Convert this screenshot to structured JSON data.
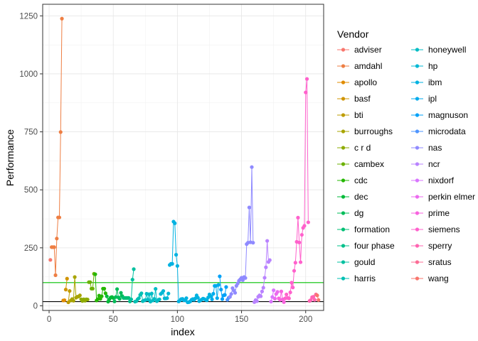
{
  "chart_data": {
    "type": "line",
    "xlabel": "index",
    "ylabel": "Performance",
    "xlim": [
      -5,
      214
    ],
    "ylim": [
      -20,
      1300
    ],
    "x_ticks": [
      0,
      50,
      100,
      150,
      200
    ],
    "y_ticks": [
      0,
      250,
      500,
      750,
      1000,
      1250
    ],
    "grid": true,
    "legend_title": "Vendor",
    "legend_position": "right",
    "hlines": [
      {
        "y": 18,
        "color": "#000000"
      },
      {
        "y": 100,
        "color": "#00c000"
      }
    ],
    "series": [
      {
        "name": "adviser",
        "color": "#F8766D",
        "x": [
          1
        ],
        "values": [
          198
        ]
      },
      {
        "name": "amdahl",
        "color": "#EE7E43",
        "x": [
          2,
          3,
          4,
          5,
          6,
          7,
          8,
          9,
          10
        ],
        "values": [
          253,
          253,
          253,
          132,
          290,
          381,
          381,
          749,
          1238
        ]
      },
      {
        "name": "apollo",
        "color": "#E08B00",
        "x": [
          11,
          12
        ],
        "values": [
          23,
          24
        ]
      },
      {
        "name": "basf",
        "color": "#D09400",
        "x": [
          13,
          14
        ],
        "values": [
          70,
          117
        ]
      },
      {
        "name": "bti",
        "color": "#BE9C00",
        "x": [
          15,
          16
        ],
        "values": [
          15,
          64
        ]
      },
      {
        "name": "burroughs",
        "color": "#A8A400",
        "x": [
          17,
          18,
          19,
          20,
          21,
          22,
          23,
          24
        ],
        "values": [
          23,
          29,
          22,
          124,
          35,
          39,
          40,
          45
        ]
      },
      {
        "name": "c r d",
        "color": "#8EAB00",
        "x": [
          25,
          26,
          27,
          28,
          29,
          30
        ],
        "values": [
          28,
          21,
          28,
          22,
          28,
          27
        ]
      },
      {
        "name": "cambex",
        "color": "#6BB100",
        "x": [
          31,
          32,
          33,
          34,
          35
        ],
        "values": [
          102,
          102,
          74,
          74,
          138
        ]
      },
      {
        "name": "cdc",
        "color": "#24B700",
        "x": [
          36,
          37,
          38,
          39,
          40,
          41,
          42,
          43,
          44
        ],
        "values": [
          136,
          23,
          29,
          44,
          30,
          41,
          74,
          74,
          54
        ]
      },
      {
        "name": "dec",
        "color": "#00BA38",
        "x": [
          45,
          46,
          47,
          48,
          49,
          50
        ],
        "values": [
          41,
          18,
          28,
          36,
          38,
          34
        ]
      },
      {
        "name": "dg",
        "color": "#00BC59",
        "x": [
          51,
          52,
          53,
          54,
          55,
          56,
          57
        ],
        "values": [
          19,
          38,
          72,
          36,
          30,
          56,
          42
        ]
      },
      {
        "name": "formation",
        "color": "#00BF74",
        "x": [
          58,
          59,
          60,
          61,
          62
        ],
        "values": [
          34,
          34,
          34,
          34,
          34
        ]
      },
      {
        "name": "four phase",
        "color": "#00C08B",
        "x": [
          63
        ],
        "values": [
          19
        ]
      },
      {
        "name": "gould",
        "color": "#00C0A0",
        "x": [
          64,
          65,
          66
        ],
        "values": [
          28,
          113,
          158
        ]
      },
      {
        "name": "harris",
        "color": "#00BFB3",
        "x": [
          67,
          68,
          69,
          70,
          71,
          72,
          73
        ],
        "values": [
          18,
          20,
          28,
          33,
          47,
          54,
          20
        ]
      },
      {
        "name": "honeywell",
        "color": "#00BCC4",
        "x": [
          74,
          75,
          76,
          77,
          78,
          79,
          80,
          81,
          82,
          83,
          84,
          85,
          86
        ],
        "values": [
          23,
          25,
          52,
          27,
          50,
          18,
          53,
          23,
          30,
          73,
          20,
          25,
          28
        ]
      },
      {
        "name": "hp",
        "color": "#00B8D4",
        "x": [
          87,
          88,
          89,
          90,
          91,
          92,
          93
        ],
        "values": [
          51,
          56,
          64,
          32,
          32,
          33,
          53
        ]
      },
      {
        "name": "ibm",
        "color": "#00B2E1",
        "x": [
          94,
          95,
          96,
          97,
          98,
          99,
          100,
          101,
          102,
          103,
          104,
          105,
          106,
          107,
          108,
          109,
          110,
          111,
          112,
          113,
          114,
          115,
          116,
          117,
          118,
          119,
          120,
          121,
          122,
          123,
          124,
          125,
          126
        ],
        "values": [
          176,
          181,
          181,
          363,
          356,
          220,
          172,
          19,
          24,
          29,
          30,
          24,
          24,
          33,
          15,
          16,
          19,
          26,
          29,
          26,
          32,
          45,
          35,
          20,
          24,
          27,
          31,
          29,
          26,
          24,
          36,
          49,
          41
        ]
      },
      {
        "name": "ipl",
        "color": "#00ABED",
        "x": [
          127,
          128,
          129,
          130,
          131,
          132
        ],
        "values": [
          28,
          52,
          86,
          86,
          33,
          90
        ]
      },
      {
        "name": "magnuson",
        "color": "#00A1F8",
        "x": [
          133,
          134,
          135,
          136,
          137,
          138
        ],
        "values": [
          127,
          70,
          29,
          45,
          47,
          81
        ]
      },
      {
        "name": "microdata",
        "color": "#4E95FF",
        "x": [
          139,
          140
        ],
        "values": [
          26,
          35
        ]
      },
      {
        "name": "nas",
        "color": "#8F8AFF",
        "x": [
          141,
          142,
          143,
          144,
          145,
          146,
          147,
          148,
          149,
          150,
          151,
          152,
          153,
          154,
          155,
          156,
          157,
          158,
          159
        ],
        "values": [
          39,
          51,
          76,
          66,
          56,
          86,
          96,
          108,
          114,
          121,
          111,
          124,
          120,
          266,
          272,
          424,
          274,
          598,
          272
        ]
      },
      {
        "name": "ncr",
        "color": "#B983FF",
        "x": [
          160,
          161,
          162,
          163,
          164,
          165,
          166,
          167,
          168,
          169,
          170,
          171,
          172
        ],
        "values": [
          16,
          25,
          20,
          39,
          45,
          41,
          62,
          78,
          121,
          166,
          280,
          189,
          197
        ]
      },
      {
        "name": "nixdorf",
        "color": "#D975FF",
        "x": [
          173,
          174,
          175
        ],
        "values": [
          18,
          38,
          67
        ]
      },
      {
        "name": "perkin elmer",
        "color": "#EC6AEF",
        "x": [
          176,
          177,
          178
        ],
        "values": [
          31,
          51,
          60
        ]
      },
      {
        "name": "prime",
        "color": "#F863DF",
        "x": [
          179,
          180,
          181,
          182,
          183
        ],
        "values": [
          32,
          26,
          62,
          28,
          16
        ]
      },
      {
        "name": "siemens",
        "color": "#FF61CC",
        "x": [
          184,
          185,
          186,
          187,
          188,
          189,
          190,
          191,
          192,
          193,
          194,
          195,
          196,
          197,
          198,
          199,
          200,
          201,
          202
        ],
        "values": [
          32,
          49,
          34,
          32,
          58,
          100,
          79,
          151,
          186,
          276,
          380,
          273,
          188,
          306,
          336,
          345,
          920,
          978,
          360
        ]
      },
      {
        "name": "sperry",
        "color": "#FF64B2",
        "x": [
          203,
          204,
          205,
          206,
          207
        ],
        "values": [
          21,
          25,
          37,
          39,
          26
        ]
      },
      {
        "name": "sratus",
        "color": "#FC6C95",
        "x": [
          208
        ],
        "values": [
          49
        ]
      },
      {
        "name": "wang",
        "color": "#F8766D",
        "x": [
          209,
          210
        ],
        "values": [
          45,
          25
        ]
      }
    ]
  }
}
